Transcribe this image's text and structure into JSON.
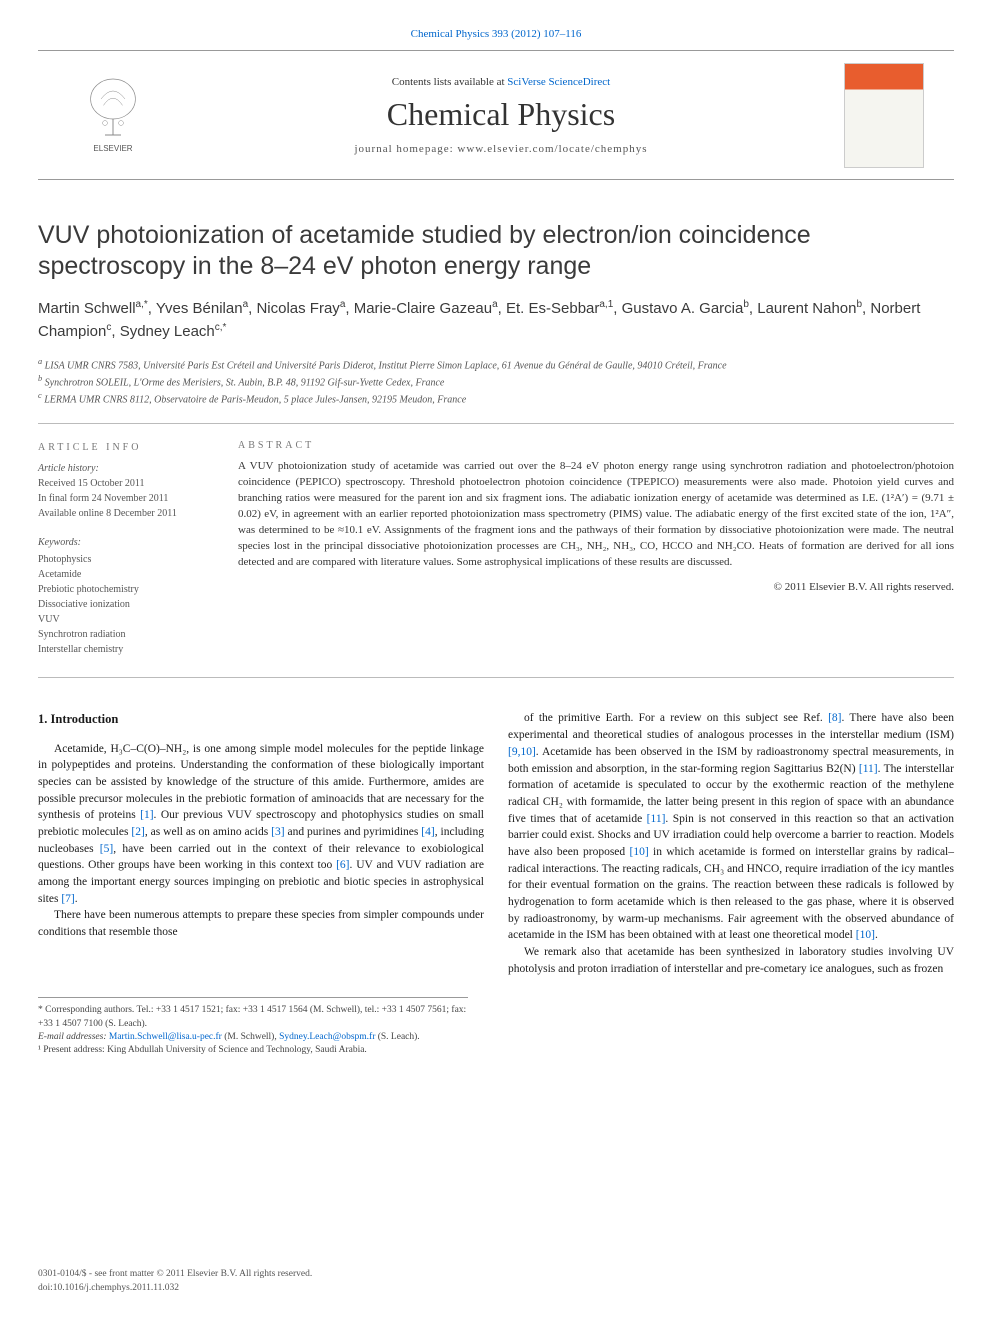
{
  "header": {
    "citation": "Chemical Physics 393 (2012) 107–116",
    "contents_prefix": "Contents lists available at ",
    "contents_link": "SciVerse ScienceDirect",
    "journal_title": "Chemical Physics",
    "homepage_prefix": "journal homepage: ",
    "homepage_url": "www.elsevier.com/locate/chemphys",
    "elsevier_label": "ELSEVIER"
  },
  "article": {
    "title": "VUV photoionization of acetamide studied by electron/ion coincidence spectroscopy in the 8–24 eV photon energy range",
    "authors_html": "Martin Schwell<sup>a,*</sup>, Yves Bénilan<sup>a</sup>, Nicolas Fray<sup>a</sup>, Marie-Claire Gazeau<sup>a</sup>, Et. Es-Sebbar<sup>a,1</sup>, Gustavo A. Garcia<sup>b</sup>, Laurent Nahon<sup>b</sup>, Norbert Champion<sup>c</sup>, Sydney Leach<sup>c,*</sup>",
    "affiliations": {
      "a": "LISA UMR CNRS 7583, Université Paris Est Créteil and Université Paris Diderot, Institut Pierre Simon Laplace, 61 Avenue du Général de Gaulle, 94010 Créteil, France",
      "b": "Synchrotron SOLEIL, L'Orme des Merisiers, St. Aubin, B.P. 48, 91192 Gif-sur-Yvette Cedex, France",
      "c": "LERMA UMR CNRS 8112, Observatoire de Paris-Meudon, 5 place Jules-Jansen, 92195 Meudon, France"
    }
  },
  "info": {
    "heading": "ARTICLE INFO",
    "history_label": "Article history:",
    "received": "Received 15 October 2011",
    "final_form": "In final form 24 November 2011",
    "online": "Available online 8 December 2011",
    "keywords_label": "Keywords:",
    "keywords": [
      "Photophysics",
      "Acetamide",
      "Prebiotic photochemistry",
      "Dissociative ionization",
      "VUV",
      "Synchrotron radiation",
      "Interstellar chemistry"
    ]
  },
  "abstract": {
    "heading": "ABSTRACT",
    "text": "A VUV photoionization study of acetamide was carried out over the 8–24 eV photon energy range using synchrotron radiation and photoelectron/photoion coincidence (PEPICO) spectroscopy. Threshold photoelectron photoion coincidence (TPEPICO) measurements were also made. Photoion yield curves and branching ratios were measured for the parent ion and six fragment ions. The adiabatic ionization energy of acetamide was determined as I.E. (1²A′) = (9.71 ± 0.02) eV, in agreement with an earlier reported photoionization mass spectrometry (PIMS) value. The adiabatic energy of the first excited state of the ion, 1²A″, was determined to be ≈10.1 eV. Assignments of the fragment ions and the pathways of their formation by dissociative photoionization were made. The neutral species lost in the principal dissociative photoionization processes are CH₃, NH₂, NH₃, CO, HCCO and NH₂CO. Heats of formation are derived for all ions detected and are compared with literature values. Some astrophysical implications of these results are discussed.",
    "copyright": "© 2011 Elsevier B.V. All rights reserved."
  },
  "body": {
    "section1_heading": "1. Introduction",
    "col1_p1": "Acetamide, H₃C–C(O)–NH₂, is one among simple model molecules for the peptide linkage in polypeptides and proteins. Understanding the conformation of these biologically important species can be assisted by knowledge of the structure of this amide. Furthermore, amides are possible precursor molecules in the prebiotic formation of aminoacids that are necessary for the synthesis of proteins [1]. Our previous VUV spectroscopy and photophysics studies on small prebiotic molecules [2], as well as on amino acids [3] and purines and pyrimidines [4], including nucleobases [5], have been carried out in the context of their relevance to exobiological questions. Other groups have been working in this context too [6]. UV and VUV radiation are among the important energy sources impinging on prebiotic and biotic species in astrophysical sites [7].",
    "col1_p2": "There have been numerous attempts to prepare these species from simpler compounds under conditions that resemble those",
    "col2_p1": "of the primitive Earth. For a review on this subject see Ref. [8]. There have also been experimental and theoretical studies of analogous processes in the interstellar medium (ISM) [9,10]. Acetamide has been observed in the ISM by radioastronomy spectral measurements, in both emission and absorption, in the star-forming region Sagittarius B2(N) [11]. The interstellar formation of acetamide is speculated to occur by the exothermic reaction of the methylene radical CH₂ with formamide, the latter being present in this region of space with an abundance five times that of acetamide [11]. Spin is not conserved in this reaction so that an activation barrier could exist. Shocks and UV irradiation could help overcome a barrier to reaction. Models have also been proposed [10] in which acetamide is formed on interstellar grains by radical–radical interactions. The reacting radicals, CH₃ and HNCO, require irradiation of the icy mantles for their eventual formation on the grains. The reaction between these radicals is followed by hydrogenation to form acetamide which is then released to the gas phase, where it is observed by radioastronomy, by warm-up mechanisms. Fair agreement with the observed abundance of acetamide in the ISM has been obtained with at least one theoretical model [10].",
    "col2_p2": "We remark also that acetamide has been synthesized in laboratory studies involving UV photolysis and proton irradiation of interstellar and pre-cometary ice analogues, such as frozen"
  },
  "footnotes": {
    "corresp": "* Corresponding authors. Tel.: +33 1 4517 1521; fax: +33 1 4517 1564 (M. Schwell), tel.: +33 1 4507 7561; fax: +33 1 4507 7100 (S. Leach).",
    "email_label": "E-mail addresses: ",
    "email1": "Martin.Schwell@lisa.u-pec.fr",
    "email1_who": " (M. Schwell), ",
    "email2": "Sydney.Leach@obspm.fr",
    "email2_who": " (S. Leach).",
    "note1": "¹ Present address: King Abdullah University of Science and Technology, Saudi Arabia."
  },
  "footer": {
    "line1": "0301-0104/$ - see front matter © 2011 Elsevier B.V. All rights reserved.",
    "line2": "doi:10.1016/j.chemphys.2011.11.032"
  },
  "colors": {
    "link": "#0066cc",
    "text": "#1a1a1a",
    "meta": "#555555",
    "border": "#999999",
    "cover_accent": "#e85d2e"
  }
}
